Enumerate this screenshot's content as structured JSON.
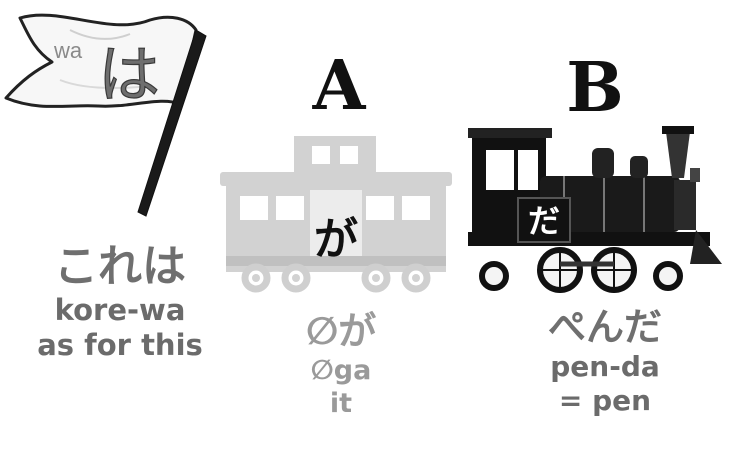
{
  "flag": {
    "romaji_tag": "wa",
    "kana": "は"
  },
  "column_left": {
    "japanese": "これは",
    "romaji": "kore-wa",
    "gloss": "as for this"
  },
  "column_a": {
    "letter": "A",
    "car_kana": "が",
    "japanese": "∅が",
    "romaji": "∅ga",
    "gloss": "it"
  },
  "column_b": {
    "letter": "B",
    "engine_kana": "だ",
    "japanese": "ぺんだ",
    "romaji": "pen-da",
    "gloss": "= pen"
  }
}
